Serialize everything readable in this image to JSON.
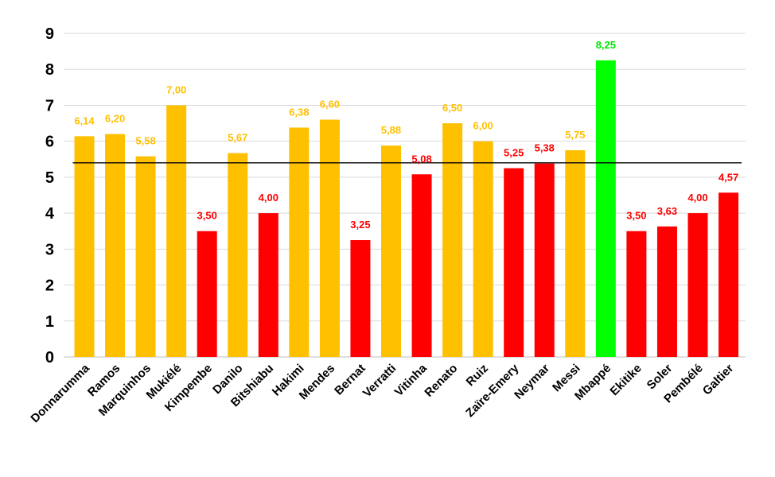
{
  "chart_data": {
    "type": "bar",
    "title": "",
    "xlabel": "",
    "ylabel": "",
    "ylim": [
      0,
      9
    ],
    "yticks": [
      "0",
      "1",
      "2",
      "3",
      "4",
      "5",
      "6",
      "7",
      "8",
      "9"
    ],
    "grid": true,
    "reference_line": 5.4,
    "colors": {
      "above": "#ffc000",
      "below": "#ff0000",
      "best": "#00ff00",
      "label_above": "#ffc000",
      "label_below": "#ff0000",
      "label_best": "#00e600"
    },
    "categories": [
      "Donnarumma",
      "Ramos",
      "Marquinhos",
      "Mukiélé",
      "Kimpembe",
      "Danilo",
      "Bitshiabu",
      "Hakimi",
      "Mendes",
      "Bernat",
      "Verratti",
      "Vitinha",
      "Renato",
      "Ruiz",
      "Zaïre-Emery",
      "Neymar",
      "Messi",
      "Mbappé",
      "Ekitike",
      "Soler",
      "Pembélé",
      "Galtier"
    ],
    "values": [
      6.14,
      6.2,
      5.58,
      7.0,
      3.5,
      5.67,
      4.0,
      6.38,
      6.6,
      3.25,
      5.88,
      5.08,
      6.5,
      6.0,
      5.25,
      5.38,
      5.75,
      8.25,
      3.5,
      3.63,
      4.0,
      4.57
    ],
    "value_labels": [
      "6,14",
      "6,20",
      "5,58",
      "7,00",
      "3,50",
      "5,67",
      "4,00",
      "6,38",
      "6,60",
      "3,25",
      "5,88",
      "5,08",
      "6,50",
      "6,00",
      "5,25",
      "5,38",
      "5,75",
      "8,25",
      "3,50",
      "3,63",
      "4,00",
      "4,57"
    ],
    "bar_colors": [
      "above",
      "above",
      "above",
      "above",
      "below",
      "above",
      "below",
      "above",
      "above",
      "below",
      "above",
      "below",
      "above",
      "above",
      "below",
      "below",
      "above",
      "best",
      "below",
      "below",
      "below",
      "below"
    ]
  }
}
